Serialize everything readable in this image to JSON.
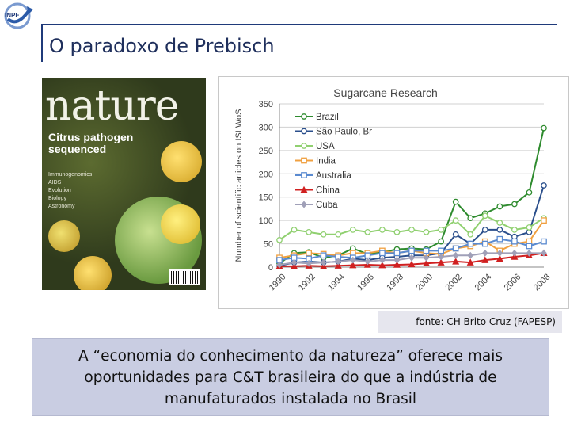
{
  "slide": {
    "title": "O paradoxo de Prebisch",
    "source": "fonte: CH Brito Cruz (FAPESP)",
    "caption": "A “economia do conhecimento da natureza” oferece mais oportunidades para C&T brasileira do que a indústria de manufaturados instalada no Brasil"
  },
  "logo": {
    "text": "INPE"
  },
  "cover": {
    "masthead": "nature",
    "headline": "Citrus pathogen sequenced",
    "toc": [
      "Immunogenomics",
      "AIDS",
      "Evolution",
      "Biology",
      "Astronomy"
    ]
  },
  "chart_data": {
    "type": "line",
    "title": "Sugarcane Research",
    "xlabel": "",
    "ylabel": "Number of scientific articles on ISI WoS",
    "ylim": [
      0,
      350
    ],
    "yticks": [
      0,
      50,
      100,
      150,
      200,
      250,
      300,
      350
    ],
    "x": [
      1990,
      1991,
      1992,
      1993,
      1994,
      1995,
      1996,
      1997,
      1998,
      1999,
      2000,
      2001,
      2002,
      2003,
      2004,
      2005,
      2006,
      2007,
      2008
    ],
    "xticks": [
      1990,
      1992,
      1994,
      1996,
      1998,
      2000,
      2002,
      2004,
      2006,
      2008
    ],
    "legend_position": "top-left",
    "series": [
      {
        "name": "Brazil",
        "color": "#2e8b2e",
        "marker": "circle",
        "values": [
          8,
          30,
          32,
          20,
          25,
          40,
          28,
          32,
          38,
          40,
          38,
          55,
          140,
          105,
          115,
          130,
          135,
          160,
          298
        ]
      },
      {
        "name": "São Paulo, Br",
        "color": "#2b4f8c",
        "marker": "circle",
        "values": [
          3,
          10,
          12,
          10,
          12,
          18,
          15,
          20,
          22,
          25,
          25,
          30,
          70,
          50,
          80,
          80,
          65,
          75,
          175
        ]
      },
      {
        "name": "USA",
        "color": "#90d070",
        "marker": "circle",
        "values": [
          58,
          80,
          75,
          70,
          70,
          80,
          75,
          80,
          75,
          80,
          75,
          80,
          100,
          70,
          110,
          95,
          80,
          85,
          105
        ]
      },
      {
        "name": "India",
        "color": "#f0a040",
        "marker": "square",
        "values": [
          20,
          25,
          30,
          28,
          25,
          30,
          30,
          35,
          30,
          35,
          30,
          28,
          40,
          45,
          55,
          35,
          50,
          55,
          100
        ]
      },
      {
        "name": "Australia",
        "color": "#5a8ad0",
        "marker": "square",
        "values": [
          15,
          20,
          18,
          25,
          22,
          20,
          25,
          30,
          30,
          35,
          35,
          35,
          40,
          50,
          50,
          60,
          55,
          45,
          55
        ]
      },
      {
        "name": "China",
        "color": "#d02020",
        "marker": "triangle",
        "values": [
          2,
          2,
          3,
          2,
          3,
          4,
          5,
          4,
          5,
          6,
          8,
          10,
          12,
          10,
          15,
          18,
          22,
          25,
          30
        ]
      },
      {
        "name": "Cuba",
        "color": "#a0a0b8",
        "marker": "diamond",
        "values": [
          5,
          10,
          8,
          10,
          12,
          15,
          12,
          15,
          15,
          20,
          20,
          22,
          25,
          25,
          30,
          30,
          30,
          30,
          30
        ]
      }
    ]
  }
}
